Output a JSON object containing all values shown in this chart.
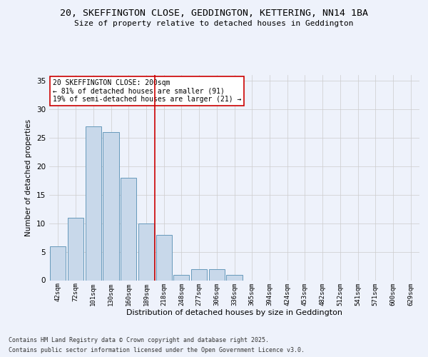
{
  "title_line1": "20, SKEFFINGTON CLOSE, GEDDINGTON, KETTERING, NN14 1BA",
  "title_line2": "Size of property relative to detached houses in Geddington",
  "xlabel": "Distribution of detached houses by size in Geddington",
  "ylabel": "Number of detached properties",
  "categories": [
    "42sqm",
    "72sqm",
    "101sqm",
    "130sqm",
    "160sqm",
    "189sqm",
    "218sqm",
    "248sqm",
    "277sqm",
    "306sqm",
    "336sqm",
    "365sqm",
    "394sqm",
    "424sqm",
    "453sqm",
    "482sqm",
    "512sqm",
    "541sqm",
    "571sqm",
    "600sqm",
    "629sqm"
  ],
  "values": [
    6,
    11,
    27,
    26,
    18,
    10,
    8,
    1,
    2,
    2,
    1,
    0,
    0,
    0,
    0,
    0,
    0,
    0,
    0,
    0,
    0
  ],
  "bar_color": "#c8d8ea",
  "bar_edge_color": "#6699bb",
  "vline_x_idx": 6,
  "vline_color": "#cc0000",
  "annotation_text": "20 SKEFFINGTON CLOSE: 200sqm\n← 81% of detached houses are smaller (91)\n19% of semi-detached houses are larger (21) →",
  "annotation_box_color": "#ffffff",
  "annotation_box_edge": "#cc0000",
  "ylim": [
    0,
    36
  ],
  "yticks": [
    0,
    5,
    10,
    15,
    20,
    25,
    30,
    35
  ],
  "footer_line1": "Contains HM Land Registry data © Crown copyright and database right 2025.",
  "footer_line2": "Contains public sector information licensed under the Open Government Licence v3.0.",
  "background_color": "#eef2fb",
  "grid_color": "#cccccc"
}
